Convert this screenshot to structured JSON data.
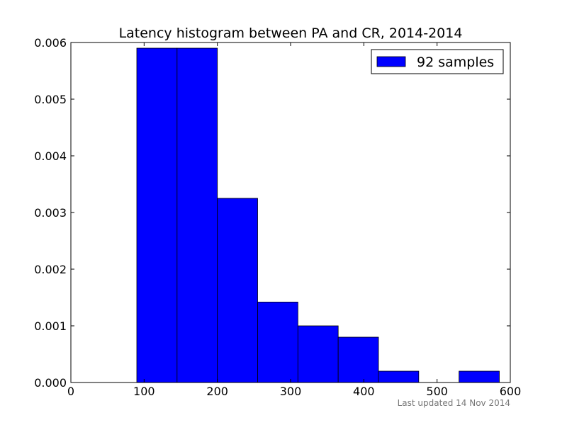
{
  "chart_data": {
    "type": "bar",
    "title": "Latency histogram between PA and CR, 2014-2014",
    "xlabel": "",
    "ylabel": "",
    "xlim": [
      0,
      600
    ],
    "ylim": [
      0,
      0.006
    ],
    "x_ticks": [
      "0",
      "100",
      "200",
      "300",
      "400",
      "500",
      "600"
    ],
    "y_ticks": [
      "0.000",
      "0.001",
      "0.002",
      "0.003",
      "0.004",
      "0.005",
      "0.006"
    ],
    "bins": [
      {
        "x0": 90,
        "x1": 145,
        "value": 0.0059
      },
      {
        "x0": 145,
        "x1": 200,
        "value": 0.0059
      },
      {
        "x0": 200,
        "x1": 255,
        "value": 0.00325
      },
      {
        "x0": 255,
        "x1": 310,
        "value": 0.00142
      },
      {
        "x0": 310,
        "x1": 365,
        "value": 0.001
      },
      {
        "x0": 365,
        "x1": 420,
        "value": 0.0008
      },
      {
        "x0": 420,
        "x1": 475,
        "value": 0.0002
      },
      {
        "x0": 475,
        "x1": 530,
        "value": 0
      },
      {
        "x0": 530,
        "x1": 585,
        "value": 0.0002
      }
    ],
    "series": [
      {
        "name": "92 samples",
        "color": "#0000ff"
      }
    ],
    "legend_position": "top-right",
    "grid": false
  },
  "footer": {
    "updated": "Last updated 14 Nov 2014"
  }
}
